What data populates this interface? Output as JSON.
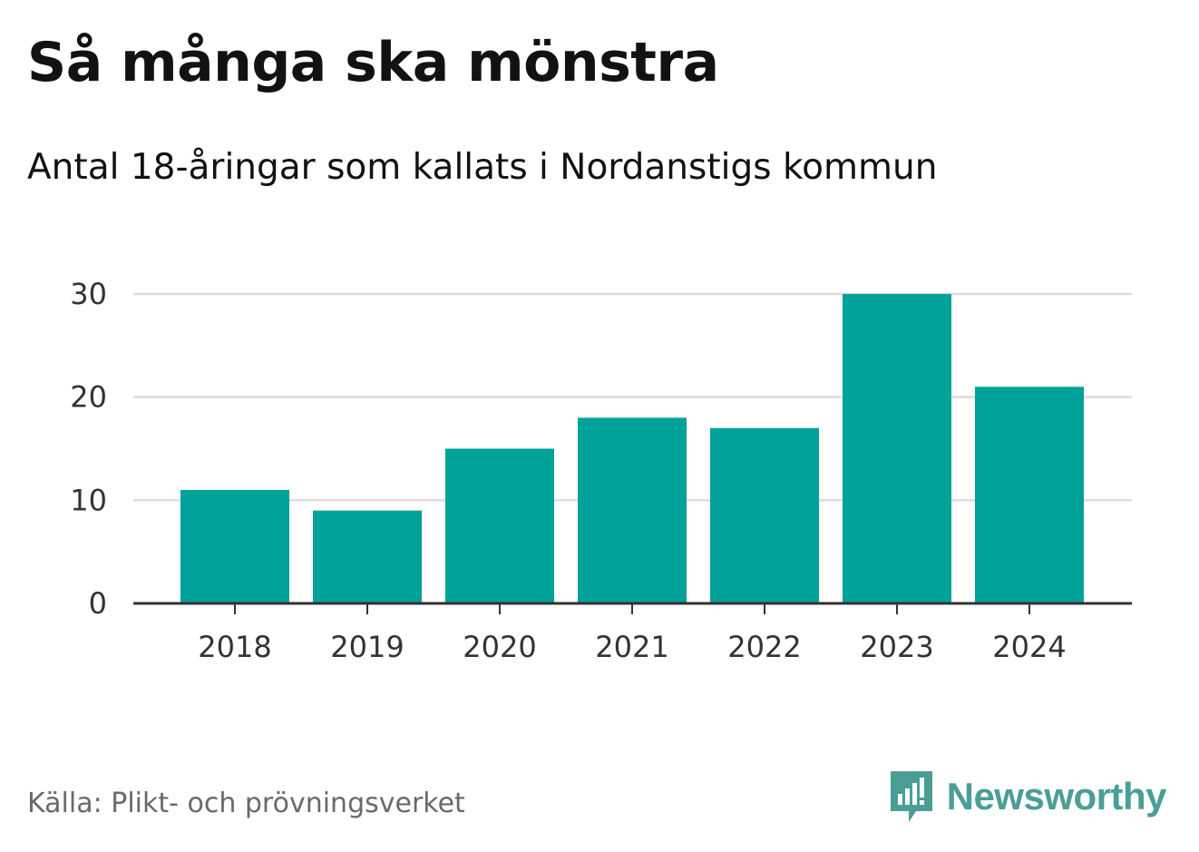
{
  "chart_data": {
    "type": "bar",
    "title": "Så många ska mönstra",
    "subtitle": "Antal 18-åringar som kallats i Nordanstigs kommun",
    "categories": [
      "2018",
      "2019",
      "2020",
      "2021",
      "2022",
      "2023",
      "2024"
    ],
    "values": [
      11,
      9,
      15,
      18,
      17,
      30,
      21
    ],
    "xlabel": "",
    "ylabel": "",
    "ylim": [
      0,
      30
    ],
    "yticks": [
      "0",
      "10",
      "20",
      "30"
    ],
    "grid": true,
    "bar_color": "#00a29a",
    "source": "Källa: Plikt- och prövningsverket"
  },
  "brand": {
    "name": "Newsworthy",
    "icon": "newsworthy-logo-icon",
    "color": "#4a9e96"
  }
}
